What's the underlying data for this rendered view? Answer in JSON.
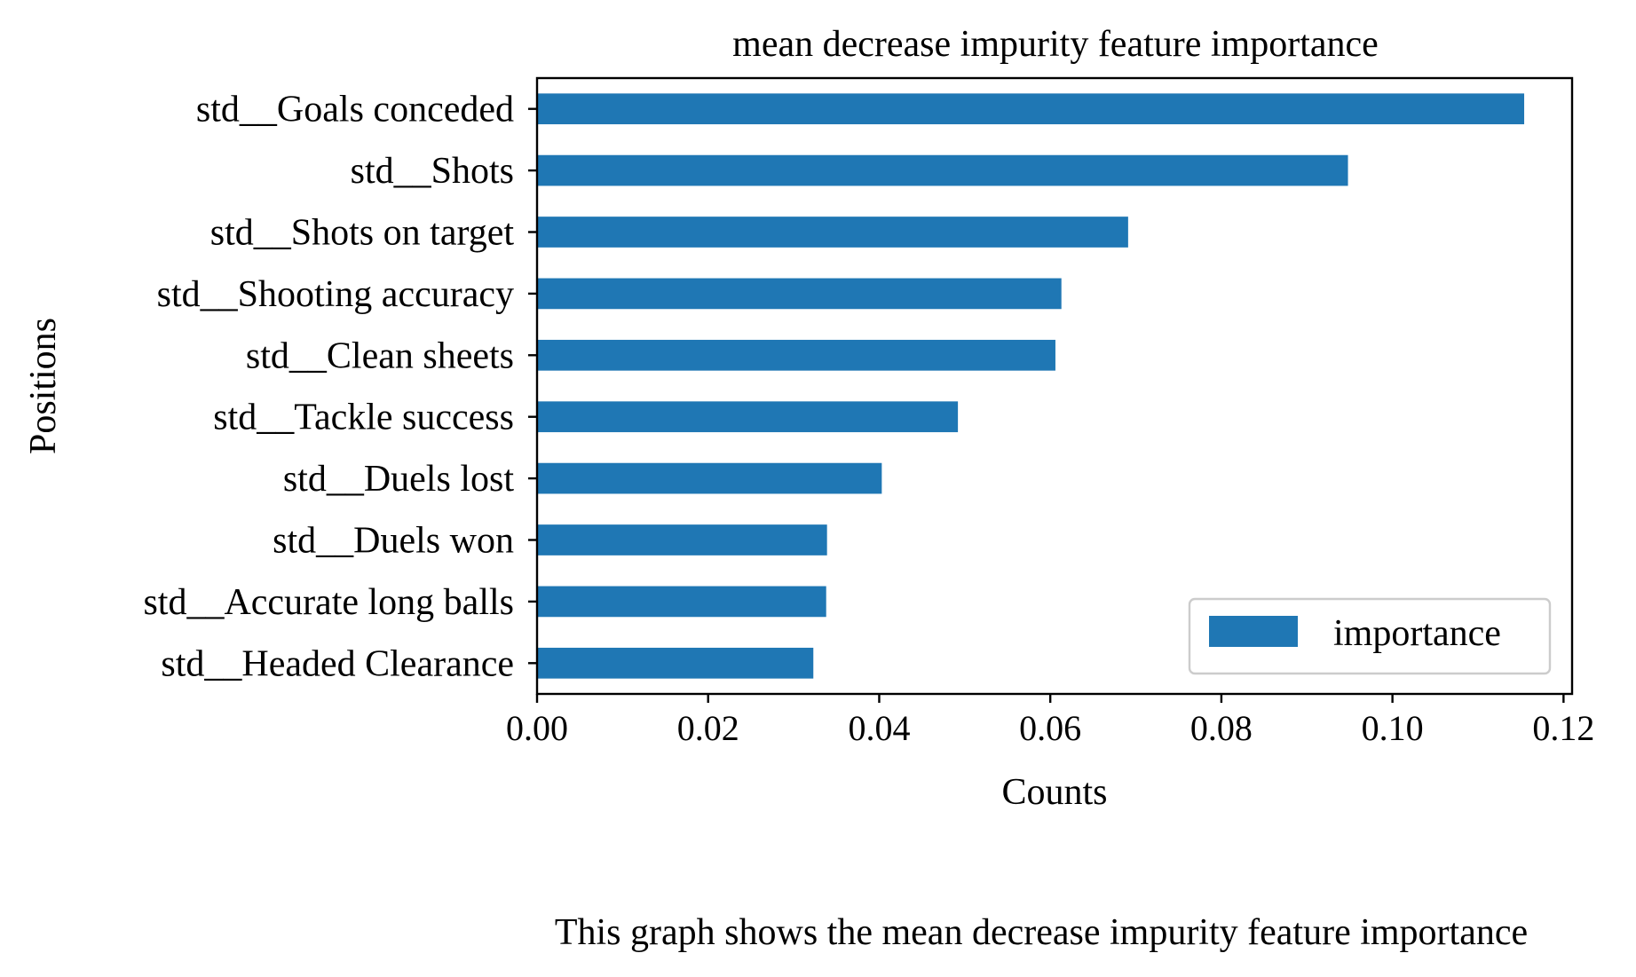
{
  "chart_data": {
    "type": "bar",
    "orientation": "horizontal",
    "title": "mean decrease impurity feature importance",
    "xlabel": "Counts",
    "ylabel": "Positions",
    "xlim": [
      0,
      0.121
    ],
    "xticks": [
      "0.00",
      "0.02",
      "0.04",
      "0.06",
      "0.08",
      "0.10",
      "0.12"
    ],
    "grid": false,
    "legend_position": "bottom-right",
    "categories": [
      "std__Goals conceded",
      "std__Shots",
      "std__Shots on target",
      "std__Shooting accuracy",
      "std__Clean sheets",
      "std__Tackle success",
      "std__Duels lost",
      "std__Duels won",
      "std__Accurate long balls",
      "std__Headed Clearance"
    ],
    "series": [
      {
        "name": "importance",
        "color": "#1f77b4",
        "values": [
          0.1154,
          0.0948,
          0.0691,
          0.0613,
          0.0606,
          0.0492,
          0.0403,
          0.0339,
          0.0338,
          0.0323
        ]
      }
    ]
  },
  "caption": "This graph shows the mean decrease impurity feature importance"
}
